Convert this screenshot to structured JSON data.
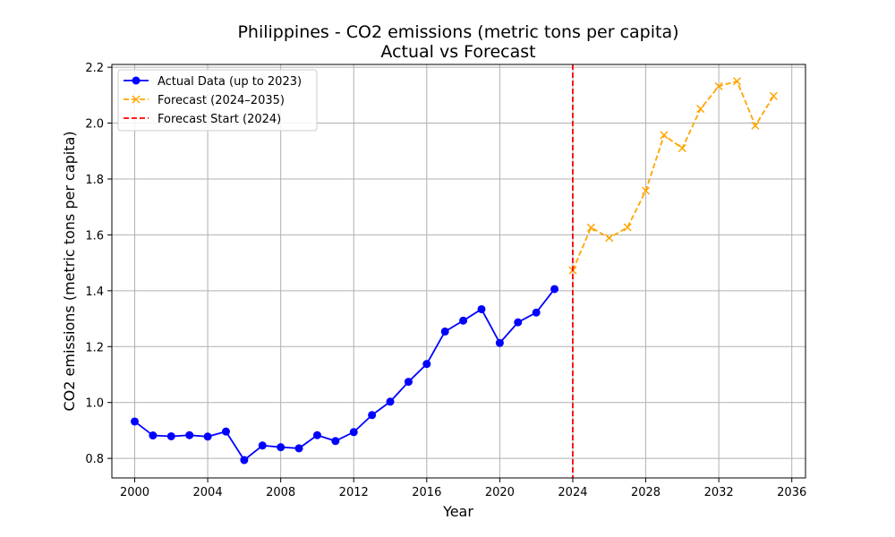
{
  "chart_data": {
    "type": "line",
    "title": "Philippines - CO2 emissions (metric tons per capita)",
    "subtitle": "Actual vs Forecast",
    "xlabel": "Year",
    "ylabel": "CO2 emissions (metric tons per capita)",
    "xlim": [
      1998.75,
      2036.75
    ],
    "ylim": [
      0.73,
      2.21
    ],
    "x_ticks": [
      2000,
      2004,
      2008,
      2012,
      2016,
      2020,
      2024,
      2028,
      2032,
      2036
    ],
    "y_ticks": [
      0.8,
      1.0,
      1.2,
      1.4,
      1.6,
      1.8,
      2.0,
      2.2
    ],
    "x_tick_labels": [
      "2000",
      "2004",
      "2008",
      "2012",
      "2016",
      "2020",
      "2024",
      "2028",
      "2032",
      "2036"
    ],
    "y_tick_labels": [
      "0.8",
      "1.0",
      "1.2",
      "1.4",
      "1.6",
      "1.8",
      "2.0",
      "2.2"
    ],
    "grid": true,
    "legend_position": "top-left",
    "series": [
      {
        "name": "Actual Data (up to 2023)",
        "color": "#0000ff",
        "style": "solid",
        "marker": "circle",
        "x": [
          2000,
          2001,
          2002,
          2003,
          2004,
          2005,
          2006,
          2007,
          2008,
          2009,
          2010,
          2011,
          2012,
          2013,
          2014,
          2015,
          2016,
          2017,
          2018,
          2019,
          2020,
          2021,
          2022,
          2023
        ],
        "y": [
          0.932,
          0.882,
          0.879,
          0.883,
          0.878,
          0.896,
          0.794,
          0.846,
          0.84,
          0.836,
          0.883,
          0.862,
          0.894,
          0.955,
          1.003,
          1.074,
          1.138,
          1.254,
          1.293,
          1.334,
          1.213,
          1.287,
          1.322,
          1.406
        ]
      },
      {
        "name": "Forecast (2024–2035)",
        "color": "#ffa500",
        "style": "dashed",
        "marker": "x",
        "x": [
          2024,
          2025,
          2026,
          2027,
          2028,
          2029,
          2030,
          2031,
          2032,
          2033,
          2034,
          2035
        ],
        "y": [
          1.473,
          1.626,
          1.589,
          1.627,
          1.758,
          1.957,
          1.91,
          2.051,
          2.132,
          2.15,
          1.991,
          2.097
        ]
      }
    ],
    "vlines": [
      {
        "name": "Forecast Start (2024)",
        "x": 2024,
        "color": "#ff0000",
        "style": "dashed"
      }
    ]
  }
}
